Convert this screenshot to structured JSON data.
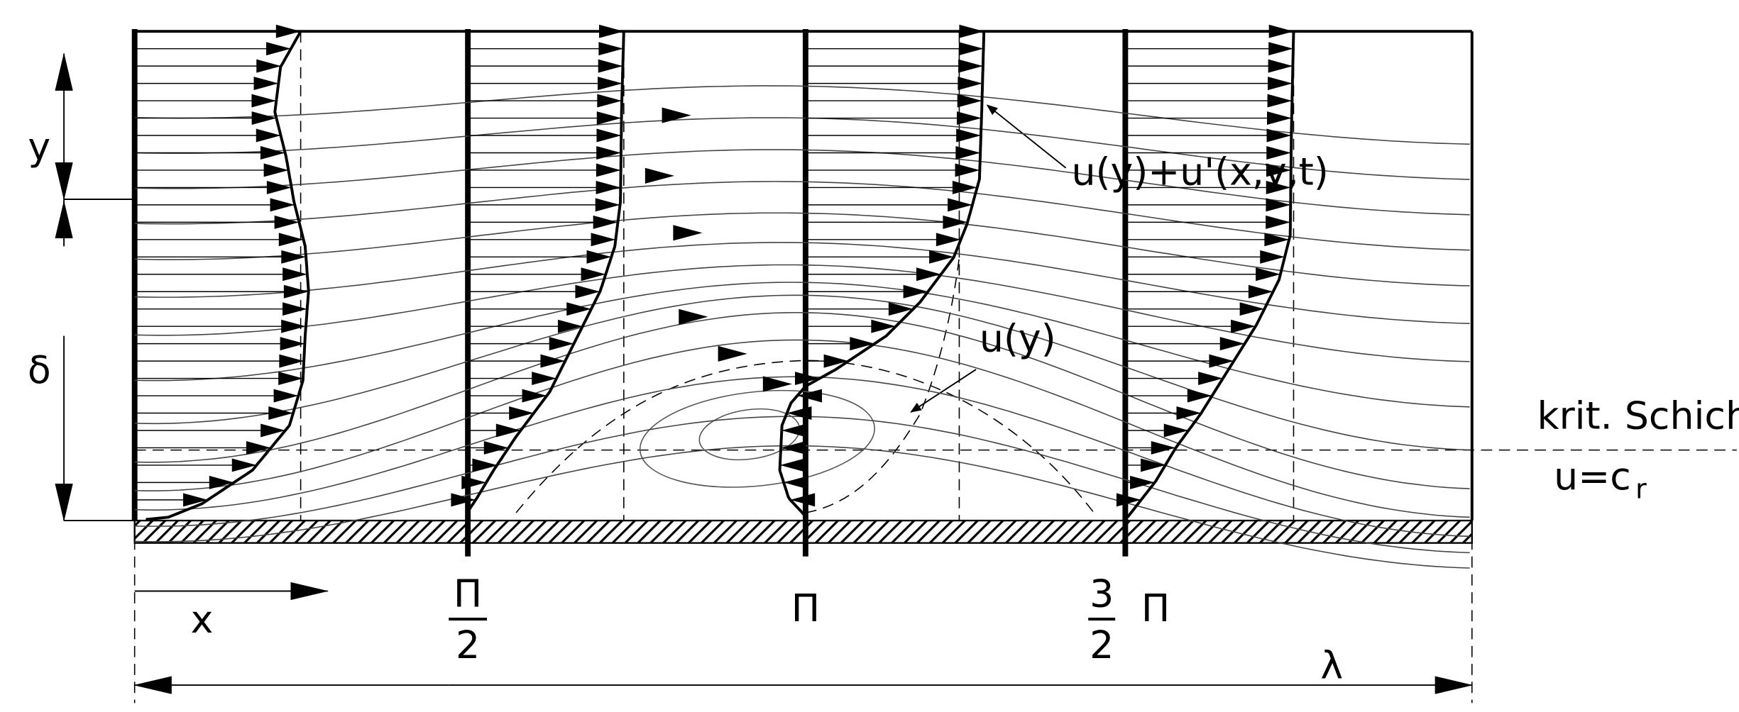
{
  "axes": {
    "y": "y",
    "delta": "δ",
    "x": "x",
    "lambda": "λ"
  },
  "annotations": {
    "perturbed_profile": "u(y)+u'(x,y,t)",
    "mean_profile": "u(y)",
    "critical_layer": "krit. Schicht",
    "critical_condition": "u=c",
    "critical_condition_subscript": "r"
  },
  "phase_labels": [
    {
      "numerator": "Π",
      "denominator": "2"
    },
    {
      "label": "Π"
    },
    {
      "numerator": "3",
      "denominator": "2",
      "symbol": "Π"
    }
  ]
}
